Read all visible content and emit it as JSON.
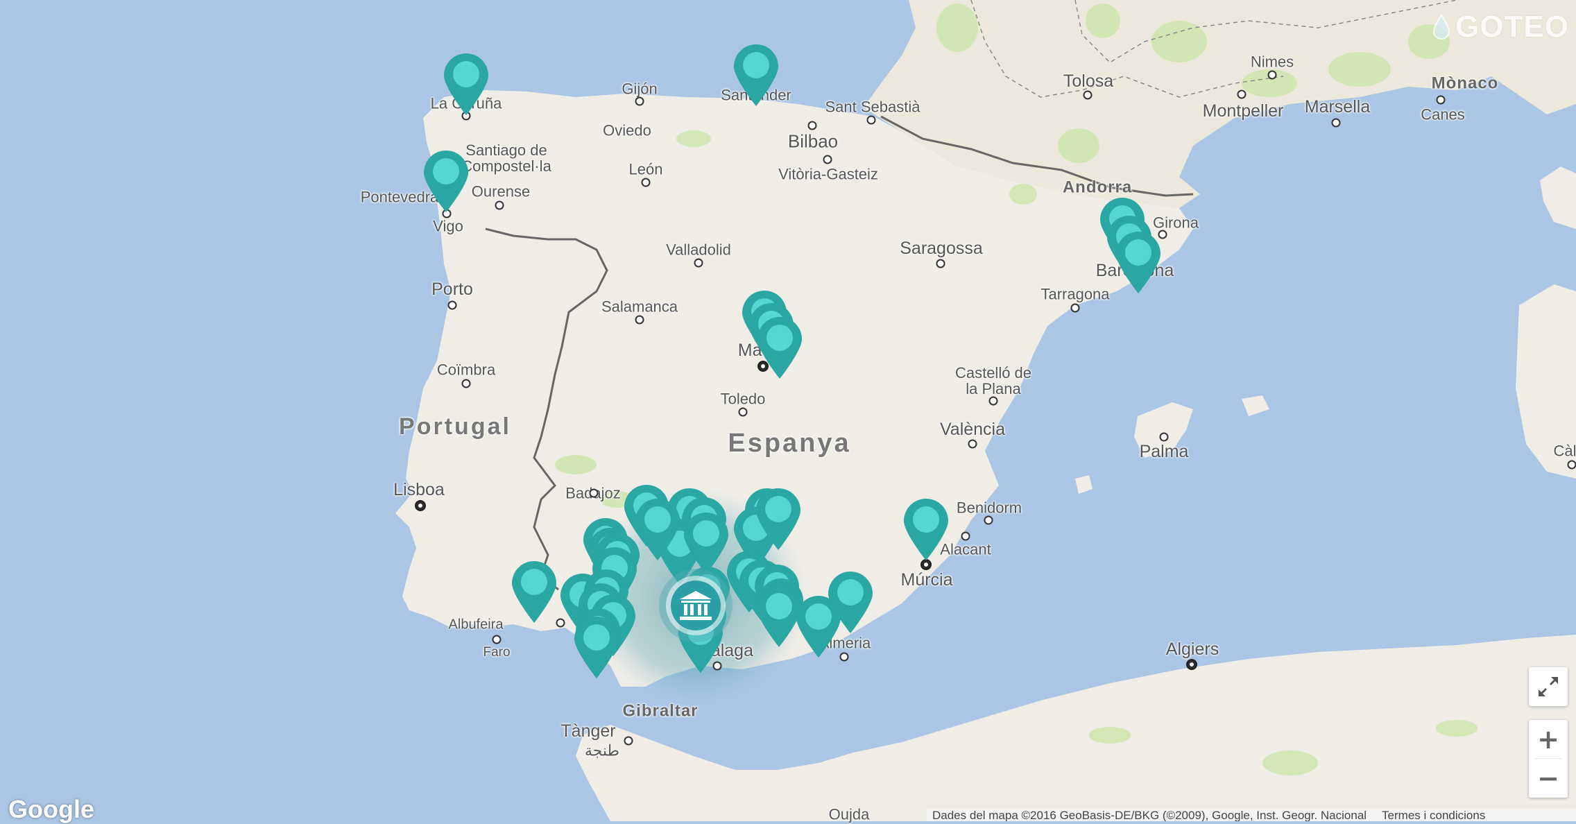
{
  "branding": {
    "logo_text": "GOTEO",
    "google_logo_text": "Google"
  },
  "attribution": {
    "map_data_text": "Dades del mapa ©2016 GeoBasis-DE/BKG (©2009), Google, Inst. Geogr. Nacional",
    "terms_text": "Termes i condicions"
  },
  "controls": {
    "zoom_in_label": "+",
    "zoom_out_label": "−",
    "fullscreen_icon": "fullscreen-exit-icon"
  },
  "labels": {
    "countries": {
      "espanya": "Espanya",
      "portugal": "Portugal",
      "andorra": "Andorra",
      "gibraltar": "Gibraltar"
    },
    "cities": {
      "la_coruna": "La Coruña",
      "gijon": "Gijón",
      "oviedo": "Oviedo",
      "santander": "Santander",
      "sant_sebastia": "Sant Sebastià",
      "bilbao": "Bilbao",
      "vitoria": "Vitòria-Gasteiz",
      "santiago": "Santiago de\nCompostel·la",
      "leon": "León",
      "ourense": "Ourense",
      "pontevedra": "Pontevedra",
      "vigo": "Vigo",
      "valladolid": "Valladolid",
      "saragossa": "Saragossa",
      "tolosa": "Tolosa",
      "montpeller": "Montpeller",
      "nimes": "Nimes",
      "marsella": "Marsella",
      "monaco": "Mònaco",
      "canes": "Canes",
      "girona": "Girona",
      "barcelona": "Barcelona",
      "tarragona": "Tarragona",
      "porto": "Porto",
      "salamanca": "Salamanca",
      "madrid": "Madrid",
      "toledo": "Toledo",
      "castello": "Castelló de\nla Plana",
      "coimbra": "Coïmbra",
      "valencia": "València",
      "palma": "Palma",
      "lisboa": "Lisboa",
      "badajoz": "Badajoz",
      "benidorm": "Benidorm",
      "alacant": "Alacant",
      "murcia": "Múrcia",
      "albufeira": "Albufeira",
      "faro": "Faro",
      "malaga": "Màlaga",
      "almeria": "Almeria",
      "tanger": "Tànger",
      "tanger_ar": "طنجة",
      "algiers": "Algiers",
      "oujda": "Oujda",
      "cagliari": "Càl"
    }
  },
  "markers_count": 40,
  "colors": {
    "sea": "#aac6e4",
    "land": "#efede6",
    "marker": "#2aa6a3",
    "marker_inner": "#56d6d0",
    "highlight": "#3b8ca0"
  }
}
